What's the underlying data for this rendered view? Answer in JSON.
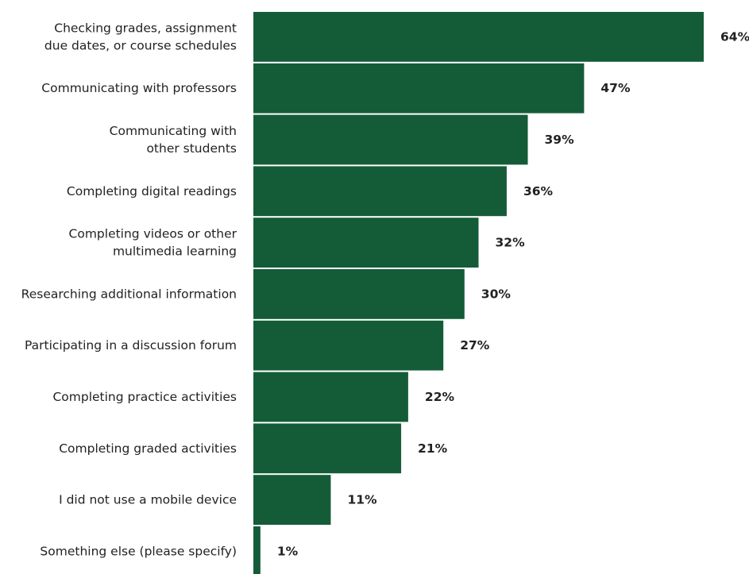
{
  "chart_data": {
    "type": "bar",
    "orientation": "horizontal",
    "categories": [
      [
        "Checking grades, assignment",
        "due dates, or course schedules"
      ],
      [
        "Communicating with professors"
      ],
      [
        "Communicating with",
        "other students"
      ],
      [
        "Completing digital readings"
      ],
      [
        "Completing videos or other",
        "multimedia learning"
      ],
      [
        "Researching additional information"
      ],
      [
        "Participating in a discussion forum"
      ],
      [
        "Completing practice activities"
      ],
      [
        "Completing graded activities"
      ],
      [
        "I did not use a mobile device"
      ],
      [
        "Something else (please specify)"
      ]
    ],
    "values": [
      64,
      47,
      39,
      36,
      32,
      30,
      27,
      22,
      21,
      11,
      1
    ],
    "value_labels": [
      "64%",
      "47%",
      "39%",
      "36%",
      "32%",
      "30%",
      "27%",
      "22%",
      "21%",
      "11%",
      "1%"
    ],
    "xlim": [
      0,
      64
    ],
    "bar_color": "#145c38",
    "grid": false,
    "legend": false
  }
}
